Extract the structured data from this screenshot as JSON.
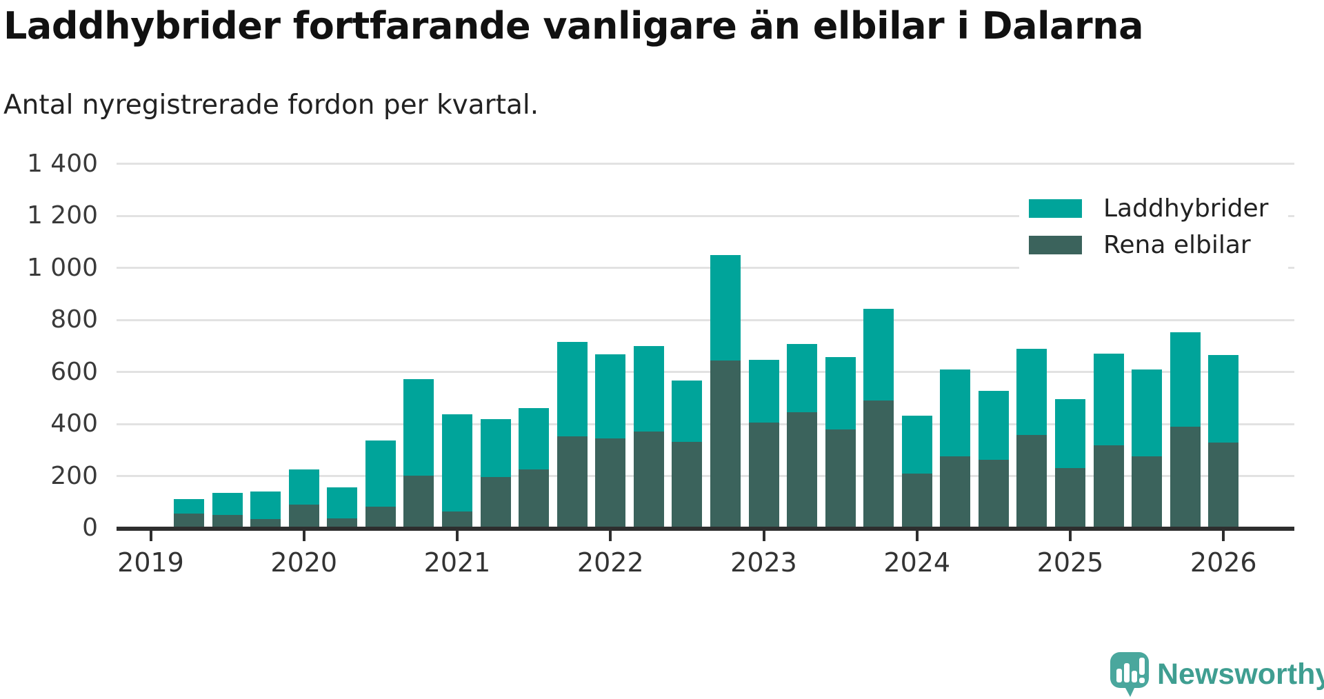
{
  "header": {
    "title": "Laddhybrider fortfarande vanligare än elbilar i Dalarna",
    "subtitle": "Antal nyregistrerade fordon per kvartal."
  },
  "legend": {
    "items": [
      {
        "label": "Laddhybrider",
        "color": "#00a49a"
      },
      {
        "label": "Rena elbilar",
        "color": "#3b635c"
      }
    ]
  },
  "chart_data": {
    "type": "bar",
    "stacked": true,
    "title": "Laddhybrider fortfarande vanligare än elbilar i Dalarna",
    "subtitle": "Antal nyregistrerade fordon per kvartal.",
    "xlabel": "",
    "ylabel": "",
    "ylim": [
      0,
      1400
    ],
    "grid": true,
    "legend_position": "top-right",
    "categories": [
      "2019 Q2",
      "2019 Q3",
      "2019 Q4",
      "2020 Q1",
      "2020 Q2",
      "2020 Q3",
      "2020 Q4",
      "2021 Q1",
      "2021 Q2",
      "2021 Q3",
      "2021 Q4",
      "2022 Q1",
      "2022 Q2",
      "2022 Q3",
      "2022 Q4",
      "2023 Q1",
      "2023 Q2",
      "2023 Q3",
      "2023 Q4",
      "2024 Q1",
      "2024 Q2",
      "2024 Q3",
      "2024 Q4",
      "2025 Q1",
      "2025 Q2",
      "2025 Q3",
      "2025 Q4",
      "2026 Q1"
    ],
    "series": [
      {
        "name": "Laddhybrider",
        "color": "#00a49a",
        "values": [
          55,
          86,
          104,
          137,
          120,
          252,
          370,
          373,
          224,
          235,
          364,
          322,
          329,
          237,
          406,
          241,
          262,
          278,
          351,
          224,
          334,
          265,
          330,
          266,
          353,
          332,
          363,
          336
        ]
      },
      {
        "name": "Rena elbilar",
        "color": "#3b635c",
        "values": [
          57,
          50,
          36,
          90,
          38,
          84,
          203,
          64,
          196,
          227,
          352,
          346,
          371,
          331,
          645,
          406,
          446,
          379,
          492,
          209,
          277,
          264,
          359,
          231,
          319,
          277,
          390,
          329
        ]
      }
    ],
    "stack_note": "Rena elbilar drawn at bottom of stack, Laddhybrider on top; bar total = sum of both series",
    "yticks": {
      "values": [
        0,
        200,
        400,
        600,
        800,
        1000,
        1200,
        1400
      ],
      "labels": [
        "0",
        "200",
        "400",
        "600",
        "800",
        "1 000",
        "1 200",
        "1 400"
      ]
    },
    "xticks": {
      "years": [
        2019,
        2020,
        2021,
        2022,
        2023,
        2024,
        2025,
        2026
      ]
    }
  },
  "branding": {
    "logo_text": "Newsworthy",
    "logo_text_color": "#3f9e91",
    "logo_mark_color": "#4aa79d"
  }
}
